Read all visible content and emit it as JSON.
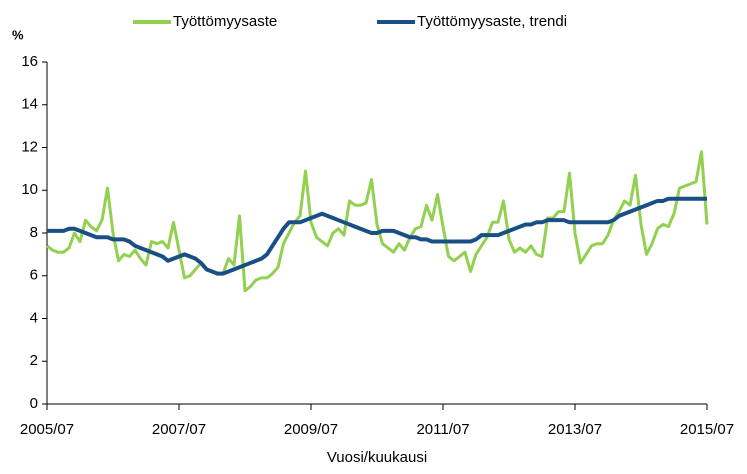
{
  "chart_data": {
    "type": "line",
    "y_axis_label": "%",
    "x_axis_label": "Vuosi/kuukausi",
    "categories": [
      "2005/07",
      null,
      null,
      null,
      null,
      null,
      null,
      null,
      null,
      null,
      null,
      null,
      null,
      null,
      null,
      null,
      null,
      null,
      null,
      null,
      null,
      null,
      null,
      null,
      "2007/07",
      null,
      null,
      null,
      null,
      null,
      null,
      null,
      null,
      null,
      null,
      null,
      null,
      null,
      null,
      null,
      null,
      null,
      null,
      null,
      null,
      null,
      null,
      null,
      "2009/07",
      null,
      null,
      null,
      null,
      null,
      null,
      null,
      null,
      null,
      null,
      null,
      null,
      null,
      null,
      null,
      null,
      null,
      null,
      null,
      null,
      null,
      null,
      null,
      "2011/07",
      null,
      null,
      null,
      null,
      null,
      null,
      null,
      null,
      null,
      null,
      null,
      null,
      null,
      null,
      null,
      null,
      null,
      null,
      null,
      null,
      null,
      null,
      null,
      "2013/07",
      null,
      null,
      null,
      null,
      null,
      null,
      null,
      null,
      null,
      null,
      null,
      null,
      null,
      null,
      null,
      null,
      null,
      null,
      null,
      null,
      null,
      null,
      null,
      "2015/07"
    ],
    "series": [
      {
        "name": "Työttömyysaste",
        "color": "#92d050",
        "values": [
          7.4,
          7.2,
          7.1,
          7.1,
          7.3,
          8.0,
          7.6,
          8.6,
          8.3,
          8.1,
          8.6,
          10.1,
          8.0,
          6.7,
          7.0,
          6.9,
          7.2,
          6.8,
          6.5,
          7.6,
          7.5,
          7.6,
          7.3,
          8.5,
          7.2,
          5.9,
          6.0,
          6.3,
          6.6,
          6.3,
          6.2,
          6.1,
          6.1,
          6.8,
          6.5,
          8.8,
          5.3,
          5.5,
          5.8,
          5.9,
          5.9,
          6.1,
          6.4,
          7.5,
          8.0,
          8.5,
          8.8,
          10.9,
          8.5,
          7.8,
          7.6,
          7.4,
          8.0,
          8.2,
          7.9,
          9.5,
          9.3,
          9.3,
          9.4,
          10.5,
          8.4,
          7.5,
          7.3,
          7.1,
          7.5,
          7.2,
          7.8,
          8.2,
          8.3,
          9.3,
          8.6,
          9.8,
          8.3,
          6.9,
          6.7,
          6.9,
          7.1,
          6.2,
          7.0,
          7.4,
          7.8,
          8.5,
          8.5,
          9.5,
          7.7,
          7.1,
          7.3,
          7.1,
          7.4,
          7.0,
          6.9,
          8.7,
          8.7,
          9.0,
          9.0,
          10.8,
          8.0,
          6.6,
          7.0,
          7.4,
          7.5,
          7.5,
          7.9,
          8.6,
          9.0,
          9.5,
          9.3,
          10.7,
          8.4,
          7.0,
          7.5,
          8.2,
          8.4,
          8.3,
          8.9,
          10.1,
          10.2,
          10.3,
          10.4,
          11.8,
          8.4
        ]
      },
      {
        "name": "Työttömyysaste, trendi",
        "color": "#1a4f85",
        "values": [
          8.1,
          8.1,
          8.1,
          8.1,
          8.2,
          8.2,
          8.1,
          8.0,
          7.9,
          7.8,
          7.8,
          7.8,
          7.7,
          7.7,
          7.7,
          7.6,
          7.4,
          7.3,
          7.2,
          7.1,
          7.0,
          6.9,
          6.7,
          6.8,
          6.9,
          7.0,
          6.9,
          6.8,
          6.6,
          6.3,
          6.2,
          6.1,
          6.1,
          6.2,
          6.3,
          6.4,
          6.5,
          6.6,
          6.7,
          6.8,
          7.0,
          7.4,
          7.8,
          8.2,
          8.5,
          8.5,
          8.5,
          8.6,
          8.7,
          8.8,
          8.9,
          8.8,
          8.7,
          8.6,
          8.5,
          8.4,
          8.3,
          8.2,
          8.1,
          8.0,
          8.0,
          8.1,
          8.1,
          8.1,
          8.0,
          7.9,
          7.8,
          7.8,
          7.7,
          7.7,
          7.6,
          7.6,
          7.6,
          7.6,
          7.6,
          7.6,
          7.6,
          7.6,
          7.7,
          7.9,
          7.9,
          7.9,
          7.9,
          8.0,
          8.1,
          8.2,
          8.3,
          8.4,
          8.4,
          8.5,
          8.5,
          8.6,
          8.6,
          8.6,
          8.6,
          8.5,
          8.5,
          8.5,
          8.5,
          8.5,
          8.5,
          8.5,
          8.5,
          8.6,
          8.8,
          8.9,
          9.0,
          9.1,
          9.2,
          9.3,
          9.4,
          9.5,
          9.5,
          9.6,
          9.6,
          9.6,
          9.6,
          9.6,
          9.6,
          9.6,
          9.6
        ]
      }
    ],
    "ylim": [
      0,
      16
    ],
    "yticks": [
      0,
      2,
      4,
      6,
      8,
      10,
      12,
      14,
      16
    ],
    "grid": false
  }
}
